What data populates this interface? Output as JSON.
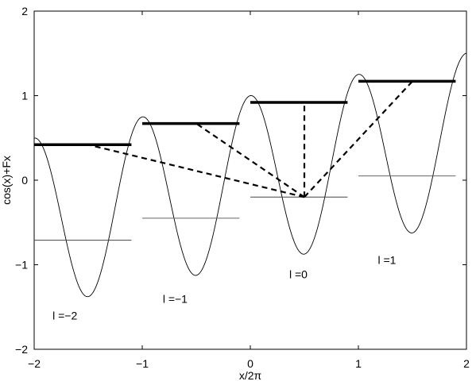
{
  "chart_data": {
    "type": "line",
    "title": "",
    "xlabel": "x/2π",
    "ylabel": "cos(x)+Fx",
    "xlim": [
      -2,
      2
    ],
    "ylim": [
      -2,
      2
    ],
    "xticks": [
      -2,
      -1,
      0,
      1,
      2
    ],
    "yticks": [
      -2,
      -1,
      0,
      1,
      2
    ],
    "xtick_labels": [
      "−2",
      "−1",
      "0",
      "1",
      "2"
    ],
    "ytick_labels": [
      "−2",
      "−1",
      "0",
      "1",
      "2"
    ],
    "grid": false,
    "curve": {
      "name": "",
      "expression": "cos(x)+Fx",
      "F": 0.04,
      "x_range": [
        -2,
        2
      ]
    },
    "levels": [
      {
        "label": "l =−2",
        "thick": {
          "x": [
            -2.0,
            -1.1
          ],
          "y": 0.42
        },
        "thin": {
          "x": [
            -2.0,
            -1.1
          ],
          "y": -0.71
        },
        "annot_at": [
          -1.83,
          -1.65
        ]
      },
      {
        "label": "l =−1",
        "thick": {
          "x": [
            -1.0,
            -0.1
          ],
          "y": 0.67
        },
        "thin": {
          "x": [
            -1.0,
            -0.1
          ],
          "y": -0.45
        },
        "annot_at": [
          -0.81,
          -1.45
        ]
      },
      {
        "label": "l =0",
        "thick": {
          "x": [
            0.0,
            0.9
          ],
          "y": 0.92
        },
        "thin": {
          "x": [
            0.0,
            0.9
          ],
          "y": -0.2
        },
        "annot_at": [
          0.36,
          -1.16
        ]
      },
      {
        "label": "l =1",
        "thick": {
          "x": [
            1.0,
            1.9
          ],
          "y": 1.17
        },
        "thin": {
          "x": [
            1.0,
            1.9
          ],
          "y": 0.05
        },
        "annot_at": [
          1.18,
          -0.99
        ]
      }
    ],
    "transitions": {
      "origin": [
        0.5,
        -0.2
      ],
      "targets": [
        [
          -1.5,
          0.42
        ],
        [
          -0.5,
          0.67
        ],
        [
          0.5,
          0.92
        ],
        [
          1.5,
          1.17
        ]
      ]
    }
  }
}
